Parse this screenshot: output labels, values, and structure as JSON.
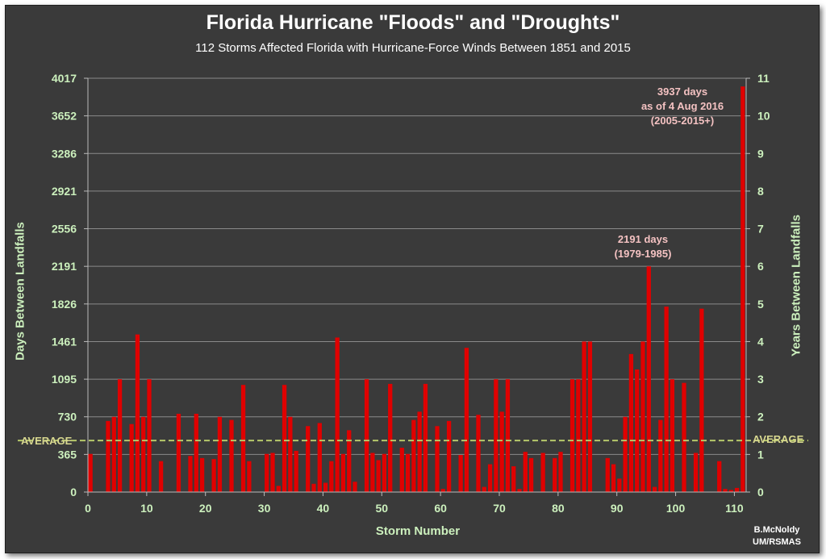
{
  "chart_data": {
    "type": "bar",
    "title": "Florida Hurricane \"Floods\" and \"Droughts\"",
    "subtitle": "112 Storms Affected Florida with Hurricane-Force Winds Between 1851 and 2015",
    "xlabel": "Storm Number",
    "ylabel": "Days Between Landfalls",
    "ylabel_right": "Years Between Landfalls",
    "xlim": [
      0,
      112
    ],
    "ylim": [
      0,
      4017
    ],
    "ylim_right": [
      0,
      11
    ],
    "x_ticks": [
      "0",
      "10",
      "20",
      "30",
      "40",
      "50",
      "60",
      "70",
      "80",
      "90",
      "100",
      "110"
    ],
    "y_ticks_left": [
      "0",
      "365",
      "730",
      "1095",
      "1461",
      "1826",
      "2191",
      "2556",
      "2921",
      "3286",
      "3652",
      "4017"
    ],
    "y_ticks_right": [
      "0",
      "1",
      "2",
      "3",
      "4",
      "5",
      "6",
      "7",
      "8",
      "9",
      "10",
      "11"
    ],
    "grid": true,
    "bar_color": "#e00000",
    "average": {
      "label": "AVERAGE",
      "value": 500,
      "color": "#b6c86a"
    },
    "values": [
      370,
      0,
      0,
      690,
      730,
      1095,
      0,
      660,
      1530,
      730,
      1095,
      0,
      300,
      0,
      0,
      760,
      0,
      350,
      760,
      330,
      0,
      320,
      730,
      0,
      700,
      0,
      1040,
      300,
      0,
      0,
      370,
      380,
      60,
      1040,
      730,
      400,
      0,
      640,
      80,
      670,
      90,
      300,
      1500,
      370,
      600,
      100,
      0,
      1095,
      380,
      310,
      370,
      1050,
      0,
      430,
      370,
      700,
      780,
      1050,
      0,
      640,
      30,
      690,
      0,
      360,
      1400,
      0,
      750,
      50,
      270,
      1095,
      780,
      1095,
      250,
      30,
      390,
      330,
      0,
      380,
      0,
      330,
      390,
      0,
      1095,
      1095,
      1461,
      1461,
      0,
      0,
      330,
      270,
      130,
      730,
      1340,
      1190,
      1461,
      2191,
      50,
      700,
      1800,
      1095,
      0,
      1060,
      0,
      380,
      1780,
      0,
      0,
      300,
      30,
      20,
      40,
      3937
    ],
    "annotations": [
      {
        "text": "2191 days",
        "text2": "(1979-1985)",
        "x": 95,
        "y": 2191
      },
      {
        "text": "3937 days",
        "text2": "as of 4 Aug 2016",
        "text3": "(2005-2015+)",
        "x": 111,
        "y": 3937
      }
    ]
  },
  "credit": {
    "line1": "B.McNoldy",
    "line2": "UM/RSMAS"
  }
}
